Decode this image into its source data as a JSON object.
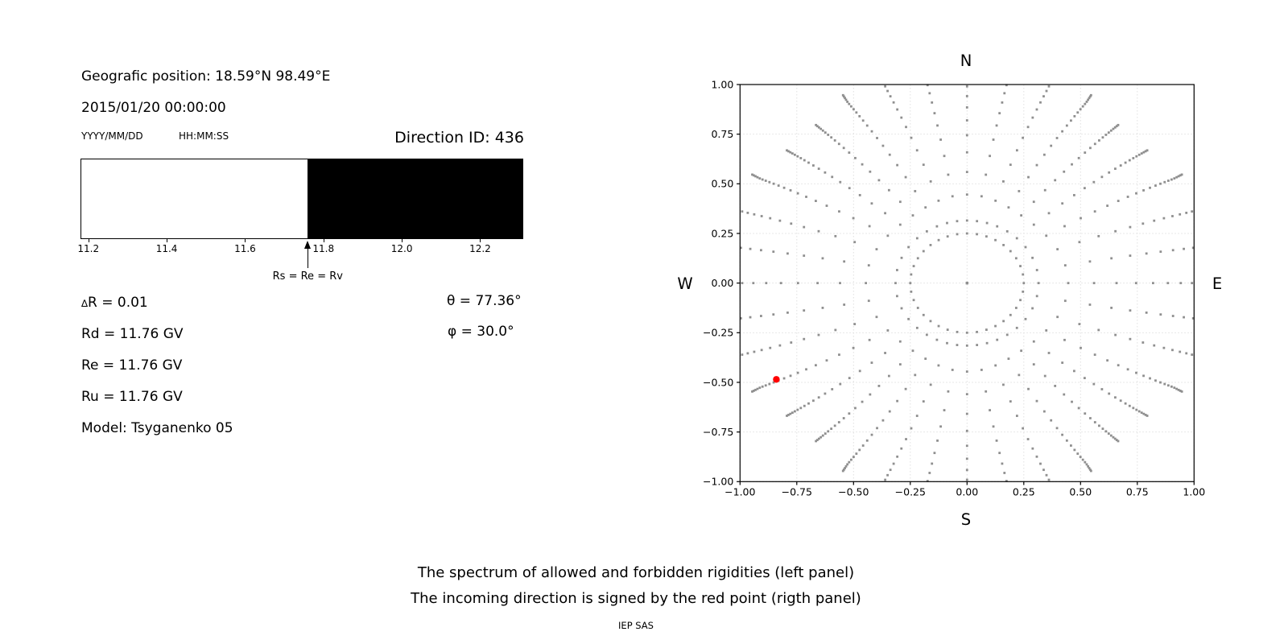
{
  "header": {
    "geographic_position": "Geografic position: 18.59°N 98.49°E",
    "datetime": "2015/01/20 00:00:00",
    "date_format_label": "YYYY/MM/DD",
    "time_format_label": "HH:MM:SS",
    "direction_id": "Direction ID: 436"
  },
  "spectrum_panel": {
    "arrow_label": "Rs = Re = Rv",
    "tick_labels": [
      "11.2",
      "11.4",
      "11.6",
      "11.8",
      "12.0",
      "12.2"
    ]
  },
  "parameters": {
    "delta_symbol": "∆",
    "delta_rest": "R = 0.01",
    "rd": "Rd = 11.76 GV",
    "re": "Re = 11.76 GV",
    "ru": "Ru = 11.76 GV",
    "model": "Model: Tsyganenko 05",
    "theta": "θ = 77.36°",
    "phi": "φ = 30.0°"
  },
  "direction_panel": {
    "compass": {
      "north": "N",
      "south": "S",
      "east": "E",
      "west": "W"
    },
    "x_tick_labels": [
      "−1.00",
      "−0.75",
      "−0.50",
      "−0.25",
      "0.00",
      "0.25",
      "0.50",
      "0.75",
      "1.00"
    ],
    "y_tick_labels": [
      "1.00",
      "0.75",
      "0.50",
      "0.25",
      "0.00",
      "−0.25",
      "−0.50",
      "−0.75",
      "−1.00"
    ],
    "grid_color": "#e0e0e0",
    "dot_color": "#8f8f8f",
    "red_color": "#ff0000"
  },
  "captions": {
    "line1": "The spectrum of allowed and forbidden rigidities (left panel)",
    "line2": "The incoming direction is signed by the red point (rigth panel)",
    "credit": "IEP SAS"
  },
  "chart_data": [
    {
      "id": "rigidity-spectrum",
      "type": "bar",
      "title": "",
      "xlim": [
        11.18,
        12.31
      ],
      "x_ticks": [
        11.2,
        11.4,
        11.6,
        11.8,
        12.0,
        12.2
      ],
      "segments": [
        {
          "x_from": 11.18,
          "x_to": 11.76,
          "state": "allowed",
          "color": "#ffffff"
        },
        {
          "x_from": 11.76,
          "x_to": 12.31,
          "state": "forbidden",
          "color": "#000000"
        }
      ],
      "annotation": {
        "x": 11.76,
        "label": "Rs = Re = Rv"
      },
      "cutoff_rigidities_GV": {
        "Rd": 11.76,
        "Re": 11.76,
        "Ru": 11.76,
        "dR": 0.01
      }
    },
    {
      "id": "incoming-direction-map",
      "type": "scatter",
      "xlim": [
        -1,
        1
      ],
      "ylim": [
        -1,
        1
      ],
      "x_ticks": [
        -1,
        -0.75,
        -0.5,
        -0.25,
        0,
        0.25,
        0.5,
        0.75,
        1
      ],
      "y_ticks": [
        -1,
        -0.75,
        -0.5,
        -0.25,
        0,
        0.25,
        0.5,
        0.75,
        1
      ],
      "grid": true,
      "compass_labels": [
        "N",
        "E",
        "S",
        "W"
      ],
      "red_point": {
        "x": -0.84,
        "y": -0.485
      },
      "dot_field": {
        "note": "gray trails of asymptotic-direction dots; dots get denser toward the outer tip of each trail",
        "center_dot": [
          0,
          0
        ],
        "ring": {
          "radius": 0.25,
          "count": 36
        },
        "spokes": {
          "count": 36,
          "angle_step_deg": 10,
          "r_start": 0.315,
          "r_max_base": 1.03,
          "r_max_amp": 0.25,
          "n_dots_base": 20,
          "n_dots_extra": 4,
          "spacing_decay": 0.87,
          "twist_deg": 8,
          "twist_fade_radius": 1.05,
          "clip": 1.01
        }
      }
    }
  ]
}
